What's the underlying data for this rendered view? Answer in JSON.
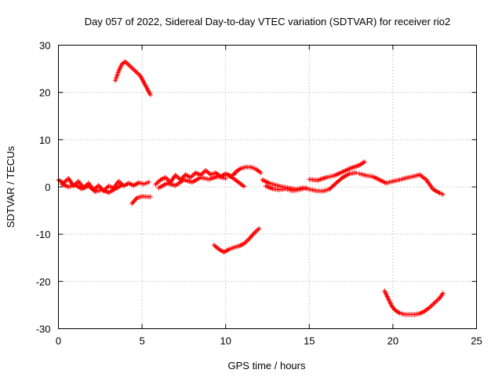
{
  "chart_data": {
    "type": "scatter",
    "title": "Day 057 of 2022, Sidereal Day-to-day VTEC variation (SDTVAR) for receiver rio2",
    "xlabel": "GPS time / hours",
    "ylabel": "SDTVAR / TECUs",
    "xlim": [
      0,
      25
    ],
    "ylim": [
      -30,
      30
    ],
    "xticks": [
      "0",
      "5",
      "10",
      "15",
      "20",
      "25"
    ],
    "yticks": [
      "-30",
      "-20",
      "-10",
      "0",
      "10",
      "20",
      "30"
    ],
    "grid": true,
    "marker": "+",
    "series_color": "#ff0000",
    "segments": [
      {
        "name": "main-band-early",
        "x": [
          0.0,
          0.3,
          0.6,
          0.9,
          1.2,
          1.5,
          1.8,
          2.1,
          2.4,
          2.7,
          3.0,
          3.3,
          3.6,
          3.9,
          4.2,
          4.5,
          4.8,
          5.1,
          5.4
        ],
        "y": [
          1.5,
          0.8,
          1.8,
          0.2,
          1.2,
          -0.2,
          0.8,
          -0.6,
          0.3,
          -0.8,
          0.2,
          -0.2,
          1.2,
          0.2,
          0.8,
          0.3,
          0.9,
          0.6,
          1.0
        ]
      },
      {
        "name": "main-band-early-lower",
        "x": [
          0.2,
          0.6,
          1.0,
          1.4,
          1.8,
          2.2,
          2.6,
          3.0,
          3.4,
          3.8
        ],
        "y": [
          0.6,
          0.0,
          0.4,
          -0.4,
          0.2,
          -1.0,
          -0.6,
          -1.2,
          -0.4,
          0.4
        ]
      },
      {
        "name": "dip-around-4-5h",
        "x": [
          4.4,
          4.7,
          5.0,
          5.3,
          5.5
        ],
        "y": [
          -3.5,
          -2.3,
          -2.0,
          -2.1,
          -2.1
        ]
      },
      {
        "name": "main-band-mid",
        "x": [
          5.8,
          6.1,
          6.4,
          6.7,
          7.0,
          7.3,
          7.6,
          7.9,
          8.2,
          8.5,
          8.8,
          9.1,
          9.4,
          9.7,
          10.0,
          10.3,
          10.6
        ],
        "y": [
          0.5,
          1.5,
          2.0,
          1.0,
          2.5,
          1.5,
          2.6,
          2.0,
          3.0,
          2.5,
          3.5,
          2.6,
          3.0,
          2.2,
          2.8,
          2.2,
          3.0
        ]
      },
      {
        "name": "main-band-mid-lower",
        "x": [
          6.0,
          6.5,
          7.0,
          7.5,
          8.0,
          8.5,
          9.0,
          9.5,
          10.0
        ],
        "y": [
          -0.2,
          0.8,
          0.3,
          1.5,
          1.0,
          2.0,
          1.6,
          2.2,
          1.8
        ]
      },
      {
        "name": "short-branch-10-11h",
        "x": [
          10.2,
          10.5,
          10.8,
          11.1
        ],
        "y": [
          2.5,
          1.7,
          0.9,
          0.1
        ]
      },
      {
        "name": "hump-11-12h",
        "x": [
          10.6,
          10.9,
          11.2,
          11.5,
          11.8,
          12.1
        ],
        "y": [
          3.2,
          3.9,
          4.2,
          4.2,
          3.8,
          3.0
        ]
      },
      {
        "name": "main-band-late",
        "x": [
          12.2,
          12.6,
          13.0,
          13.4,
          13.8,
          14.2,
          14.6,
          15.0,
          15.4,
          15.8,
          16.2,
          16.6,
          17.0,
          17.4,
          17.8
        ],
        "y": [
          1.5,
          0.8,
          0.4,
          0.0,
          -0.2,
          -0.5,
          -0.2,
          -0.5,
          -0.8,
          -0.9,
          -0.5,
          0.8,
          2.0,
          2.8,
          3.0
        ]
      },
      {
        "name": "main-band-late-lower",
        "x": [
          12.4,
          12.8,
          13.2,
          13.6,
          14.0,
          14.4,
          14.8
        ],
        "y": [
          0.2,
          -0.4,
          -0.6,
          -0.4,
          -0.8,
          -0.6,
          -0.2
        ]
      },
      {
        "name": "rising-branch-15-18h",
        "x": [
          15.0,
          15.5,
          16.0,
          16.5,
          17.0,
          17.5,
          18.0,
          18.3
        ],
        "y": [
          1.6,
          1.4,
          2.0,
          2.4,
          3.2,
          4.0,
          4.6,
          5.3
        ]
      },
      {
        "name": "main-band-tail",
        "x": [
          18.0,
          18.4,
          18.8,
          19.2,
          19.6,
          20.0,
          20.4,
          20.8,
          21.2,
          21.6,
          22.0,
          22.4,
          22.8,
          23.0
        ],
        "y": [
          2.8,
          2.4,
          2.2,
          1.5,
          0.8,
          1.2,
          1.5,
          1.9,
          2.2,
          2.6,
          1.5,
          -0.5,
          -1.3,
          -1.6
        ]
      },
      {
        "name": "upper-arc",
        "x": [
          3.4,
          3.6,
          3.8,
          4.0,
          4.3,
          4.6,
          4.9,
          5.2,
          5.5
        ],
        "y": [
          22.5,
          24.5,
          26.0,
          26.5,
          25.5,
          24.5,
          23.5,
          21.5,
          19.5
        ]
      },
      {
        "name": "arc-near-minus-10",
        "x": [
          9.3,
          9.6,
          9.9,
          10.2,
          10.5,
          10.8,
          11.1,
          11.4,
          11.7,
          12.0
        ],
        "y": [
          -12.3,
          -13.2,
          -13.8,
          -13.2,
          -12.8,
          -12.5,
          -12.0,
          -11.0,
          -9.8,
          -8.8
        ]
      },
      {
        "name": "bowl-near-minus-27",
        "x": [
          19.5,
          19.7,
          19.9,
          20.1,
          20.4,
          20.7,
          21.0,
          21.3,
          21.6,
          21.9,
          22.2,
          22.5,
          22.8,
          23.0
        ],
        "y": [
          -22.0,
          -23.5,
          -25.0,
          -26.0,
          -26.7,
          -27.0,
          -27.0,
          -27.0,
          -26.8,
          -26.3,
          -25.5,
          -24.5,
          -23.5,
          -22.5
        ]
      }
    ]
  }
}
